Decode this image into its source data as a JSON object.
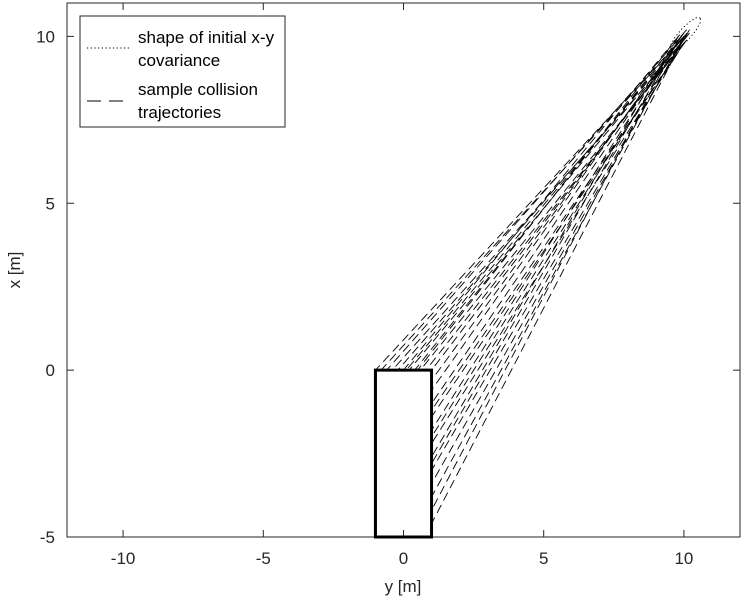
{
  "chart_data": {
    "type": "line",
    "xlabel": "y [m]",
    "ylabel": "x [m]",
    "xlim": [
      -12,
      12
    ],
    "ylim": [
      -5,
      11
    ],
    "xticks": [
      -10,
      -5,
      0,
      5,
      10
    ],
    "yticks": [
      -5,
      0,
      5,
      10
    ],
    "legend": "top-left",
    "box": {
      "x": [
        -1,
        1
      ],
      "values": [
        -5,
        0
      ],
      "color": "#000000"
    },
    "series": [
      {
        "name": "shape of initial x-y covariance",
        "color": "#000000",
        "style": "dotted",
        "x": [
          10.59,
          10.45,
          10.21,
          9.92,
          9.67,
          9.52,
          9.51,
          9.65,
          9.89,
          10.18,
          10.43,
          10.58,
          10.59
        ],
        "values": [
          10.55,
          10.56,
          10.44,
          10.22,
          9.96,
          9.73,
          9.6,
          9.58,
          9.7,
          9.92,
          10.18,
          10.41,
          10.55
        ]
      },
      {
        "name": "sample collision trajectories",
        "color": "#000000",
        "style": "dashed",
        "lines": [
          {
            "x": [
              10.0,
              -1.0
            ],
            "values": [
              10.0,
              0
            ]
          },
          {
            "x": [
              9.8,
              -0.8
            ],
            "values": [
              9.8,
              0
            ]
          },
          {
            "x": [
              10.1,
              -0.6
            ],
            "values": [
              10.2,
              0
            ]
          },
          {
            "x": [
              9.9,
              -0.4
            ],
            "values": [
              9.7,
              0
            ]
          },
          {
            "x": [
              10.0,
              -0.2
            ],
            "values": [
              9.9,
              0
            ]
          },
          {
            "x": [
              9.7,
              0.0
            ],
            "values": [
              9.9,
              0
            ]
          },
          {
            "x": [
              10.2,
              0.2
            ],
            "values": [
              10.1,
              0
            ]
          },
          {
            "x": [
              9.9,
              0.4
            ],
            "values": [
              10.0,
              0
            ]
          },
          {
            "x": [
              10.0,
              0.6
            ],
            "values": [
              9.8,
              0
            ]
          },
          {
            "x": [
              9.8,
              0.8
            ],
            "values": [
              9.6,
              0
            ]
          },
          {
            "x": [
              10.1,
              1.0
            ],
            "values": [
              10.0,
              0
            ]
          },
          {
            "x": [
              9.9,
              1.0
            ],
            "values": [
              9.9,
              -0.3
            ]
          },
          {
            "x": [
              10.0,
              1.0
            ],
            "values": [
              10.1,
              -0.6
            ]
          },
          {
            "x": [
              9.7,
              1.0
            ],
            "values": [
              9.7,
              -1.0
            ]
          },
          {
            "x": [
              10.1,
              1.0
            ],
            "values": [
              9.9,
              -1.4
            ]
          },
          {
            "x": [
              9.9,
              1.0
            ],
            "values": [
              10.0,
              -1.8
            ]
          },
          {
            "x": [
              10.0,
              1.0
            ],
            "values": [
              9.8,
              -2.2
            ]
          },
          {
            "x": [
              9.8,
              1.0
            ],
            "values": [
              10.0,
              -2.6
            ]
          },
          {
            "x": [
              10.2,
              1.0
            ],
            "values": [
              10.2,
              -3.0
            ]
          },
          {
            "x": [
              9.9,
              1.0
            ],
            "values": [
              9.8,
              -3.4
            ]
          },
          {
            "x": [
              10.0,
              1.0
            ],
            "values": [
              10.0,
              -3.8
            ]
          },
          {
            "x": [
              9.8,
              1.0
            ],
            "values": [
              9.9,
              -4.2
            ]
          },
          {
            "x": [
              10.1,
              1.0
            ],
            "values": [
              10.1,
              -4.6
            ]
          },
          {
            "x": [
              9.95,
              0.1
            ],
            "values": [
              9.95,
              0
            ]
          },
          {
            "x": [
              10.05,
              1.0
            ],
            "values": [
              9.85,
              -1.2
            ]
          },
          {
            "x": [
              9.85,
              0.5
            ],
            "values": [
              10.05,
              0
            ]
          },
          {
            "x": [
              10.05,
              1.0
            ],
            "values": [
              10.05,
              -2.0
            ]
          },
          {
            "x": [
              9.75,
              1.0
            ],
            "values": [
              9.8,
              -2.8
            ]
          }
        ]
      }
    ]
  }
}
